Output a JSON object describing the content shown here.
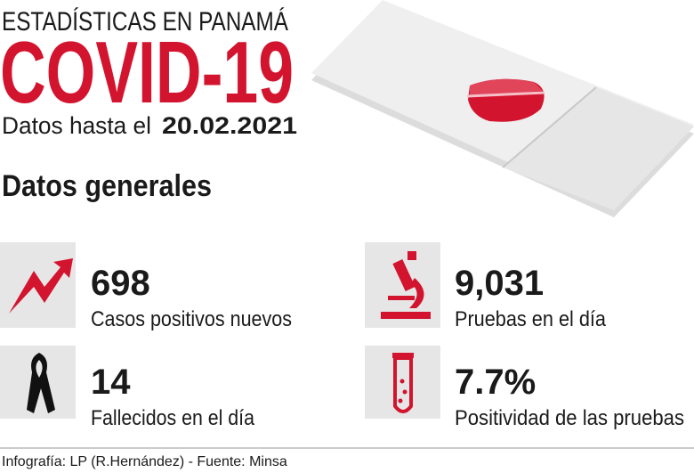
{
  "header": {
    "kicker": "ESTADÍSTICAS EN PANAMÁ",
    "title": "COVID-19",
    "date_prefix": "Datos hasta el",
    "date": "20.02.2021"
  },
  "section_title": "Datos generales",
  "stats": [
    {
      "value": "698",
      "label": "Casos positivos nuevos"
    },
    {
      "value": "9,031",
      "label": "Pruebas en el día"
    },
    {
      "value": "14",
      "label": "Fallecidos en el día"
    },
    {
      "value": "7.7%",
      "label": "Positividad de las pruebas"
    }
  ],
  "footer": "Infografía: LP (R.Hernández) - Fuente: Minsa"
}
